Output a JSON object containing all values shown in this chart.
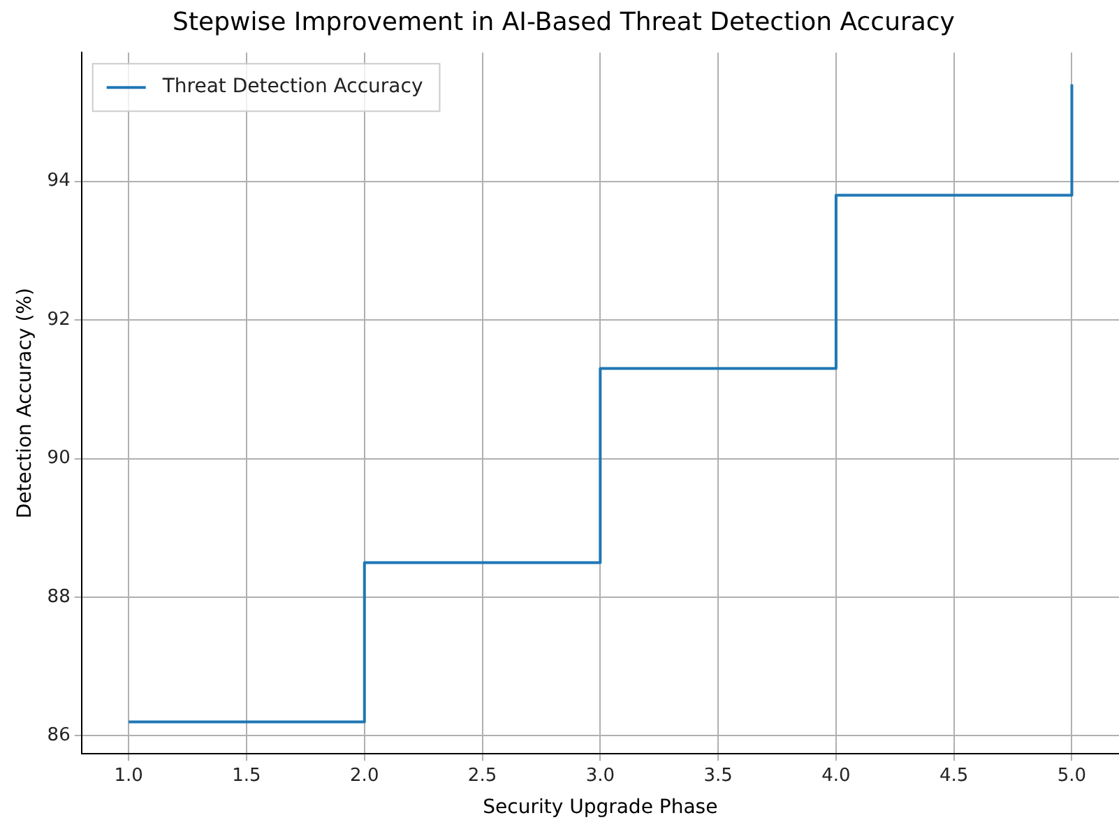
{
  "chart_data": {
    "type": "step",
    "title": "Stepwise Improvement in AI-Based Threat Detection Accuracy",
    "xlabel": "Security Upgrade Phase",
    "ylabel": "Detection Accuracy (%)",
    "x": [
      1,
      2,
      3,
      4,
      5
    ],
    "series": [
      {
        "name": "Threat Detection Accuracy",
        "color": "#1f77b4",
        "values": [
          86.2,
          88.5,
          91.3,
          93.8,
          95.4
        ]
      }
    ],
    "xlim": [
      0.8,
      5.2
    ],
    "ylim": [
      85.74,
      95.86
    ],
    "xticks": [
      {
        "value": 1,
        "label": "1.0"
      },
      {
        "value": 1.5,
        "label": "1.5"
      },
      {
        "value": 2,
        "label": "2.0"
      },
      {
        "value": 2.5,
        "label": "2.5"
      },
      {
        "value": 3,
        "label": "3.0"
      },
      {
        "value": 3.5,
        "label": "3.5"
      },
      {
        "value": 4,
        "label": "4.0"
      },
      {
        "value": 4.5,
        "label": "4.5"
      },
      {
        "value": 5,
        "label": "5.0"
      }
    ],
    "yticks": [
      86,
      88,
      90,
      92,
      94
    ],
    "grid": true,
    "legend": "top left"
  }
}
